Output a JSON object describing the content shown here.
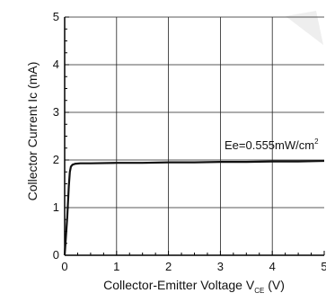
{
  "chart_data": {
    "type": "line",
    "title": "",
    "xlabel": "Collector-Emitter Voltage V",
    "xlabel_subscript": "CE",
    "xlabel_unit": " (V)",
    "ylabel": "Collector Current Ic (mA)",
    "xlim": [
      0,
      5
    ],
    "ylim": [
      0,
      5
    ],
    "x_ticks": [
      "0",
      "1",
      "2",
      "3",
      "4",
      "5"
    ],
    "y_ticks": [
      "0",
      "1",
      "2",
      "3",
      "4",
      "5"
    ],
    "grid": true,
    "annotation": {
      "text": "Ee=0.555mW/cm",
      "superscript": "2",
      "x": 3.08,
      "y": 2.3
    },
    "series": [
      {
        "name": "",
        "x": [
          0,
          0.05,
          0.08,
          0.1,
          0.12,
          0.15,
          0.2,
          0.3,
          0.5,
          1,
          1.5,
          2,
          2.5,
          3,
          3.5,
          4,
          4.5,
          5
        ],
        "y": [
          0,
          0.8,
          1.45,
          1.75,
          1.86,
          1.9,
          1.92,
          1.93,
          1.93,
          1.94,
          1.94,
          1.95,
          1.95,
          1.96,
          1.96,
          1.97,
          1.97,
          1.98
        ]
      }
    ],
    "colors": {
      "line": "#111111",
      "grid": "#222222",
      "watermark": "#eeeeee"
    }
  }
}
